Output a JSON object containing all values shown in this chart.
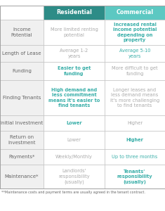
{
  "header_row": [
    "",
    "Residential",
    "Commercial"
  ],
  "header_res_bg": "#2d8c87",
  "header_com_bg": "#5cc8c2",
  "header_text_color": "#ffffff",
  "rows": [
    {
      "label": "Income\nPotential",
      "residential": "More limited renting\npotential",
      "commercial": "Increased rental\nincome potential\ndepending on\nproperty",
      "res_bold": false,
      "com_bold": true,
      "res_color": "#aaaaaa",
      "com_color": "#3aafa9"
    },
    {
      "label": "Length of Lease",
      "residential": "Average 1-2\nyears",
      "commercial": "Average 5-10\nyears",
      "res_bold": false,
      "com_bold": false,
      "res_color": "#aaaaaa",
      "com_color": "#3aafa9"
    },
    {
      "label": "Funding",
      "residential": "Easier to get\nfunding",
      "commercial": "More difficult to get\nfunding",
      "res_bold": true,
      "com_bold": false,
      "res_color": "#3aafa9",
      "com_color": "#aaaaaa"
    },
    {
      "label": "Finding Tenants",
      "residential": "High demand and\nless commitment\nmeans it's easier to\nfind tenants",
      "commercial": "Longer leases and\nless demand means\nit's more challenging\nto find tenants",
      "res_bold": true,
      "com_bold": false,
      "res_color": "#3aafa9",
      "com_color": "#aaaaaa"
    },
    {
      "label": "Initial Investment",
      "residential": "Lower",
      "commercial": "Higher",
      "res_bold": true,
      "com_bold": false,
      "res_color": "#3aafa9",
      "com_color": "#aaaaaa"
    },
    {
      "label": "Return on\nInvestment",
      "residential": "Lower",
      "commercial": "Higher",
      "res_bold": false,
      "com_bold": true,
      "res_color": "#aaaaaa",
      "com_color": "#3aafa9"
    },
    {
      "label": "Payments*",
      "residential": "Weekly/Monthly",
      "commercial": "Up to three months",
      "res_bold": false,
      "com_bold": false,
      "res_color": "#aaaaaa",
      "com_color": "#3aafa9"
    },
    {
      "label": "Maintenance*",
      "residential": "Landlords'\nresponsibility\n(usually)",
      "commercial": "Tenants'\nresponsibility\n(usually)",
      "res_bold": false,
      "com_bold": true,
      "res_color": "#aaaaaa",
      "com_color": "#3aafa9"
    }
  ],
  "footer": "**Maintenance costs and payment terms are usually agreed in the tenant contract.",
  "teal": "#3aafa9",
  "row_bg": "#f0f0f0",
  "white_bg": "#ffffff",
  "label_color": "#666666"
}
